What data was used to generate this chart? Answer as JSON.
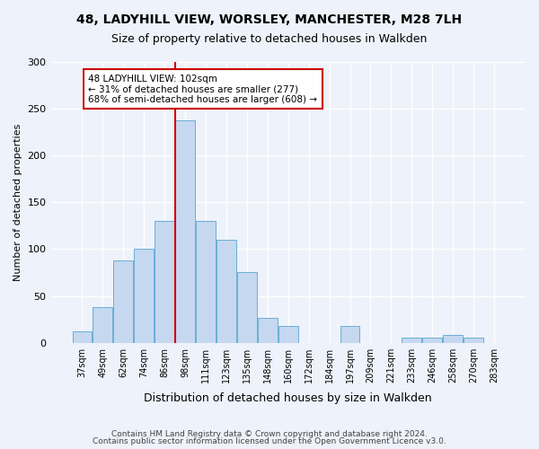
{
  "title_line1": "48, LADYHILL VIEW, WORSLEY, MANCHESTER, M28 7LH",
  "title_line2": "Size of property relative to detached houses in Walkden",
  "xlabel": "Distribution of detached houses by size in Walkden",
  "ylabel": "Number of detached properties",
  "bin_labels": [
    "37sqm",
    "49sqm",
    "62sqm",
    "74sqm",
    "86sqm",
    "98sqm",
    "111sqm",
    "123sqm",
    "135sqm",
    "148sqm",
    "160sqm",
    "172sqm",
    "184sqm",
    "197sqm",
    "209sqm",
    "221sqm",
    "233sqm",
    "246sqm",
    "258sqm",
    "270sqm",
    "283sqm"
  ],
  "bar_values": [
    12,
    38,
    88,
    100,
    130,
    238,
    130,
    110,
    75,
    27,
    18,
    0,
    0,
    18,
    0,
    0,
    5,
    5,
    8,
    5,
    0
  ],
  "bar_color": "#c5d8f0",
  "bar_edge_color": "#6aaed6",
  "vline_x_index": 5,
  "vline_color": "#cc0000",
  "annotation_text": "48 LADYHILL VIEW: 102sqm\n← 31% of detached houses are smaller (277)\n68% of semi-detached houses are larger (608) →",
  "annotation_box_color": "#ffffff",
  "annotation_box_edge": "#cc0000",
  "ylim": [
    0,
    300
  ],
  "yticks": [
    0,
    50,
    100,
    150,
    200,
    250,
    300
  ],
  "background_color": "#eef2fa",
  "grid_color": "#ffffff",
  "footer_line1": "Contains HM Land Registry data © Crown copyright and database right 2024.",
  "footer_line2": "Contains public sector information licensed under the Open Government Licence v3.0."
}
